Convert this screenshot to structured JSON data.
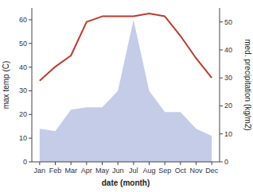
{
  "chart_data": {
    "type": "area",
    "categories": [
      "Jan",
      "Feb",
      "Mar",
      "Apr",
      "May",
      "Jun",
      "Jul",
      "Aug",
      "Sep",
      "Oct",
      "Nov",
      "Dec"
    ],
    "series": [
      {
        "type": "area",
        "color": "#c5cce8",
        "values": [
          14,
          13,
          22,
          23,
          23,
          30,
          60,
          30,
          21,
          21,
          14,
          11
        ]
      },
      {
        "type": "line",
        "axis": "y2",
        "color": "#c0392b",
        "values": [
          29,
          34,
          38,
          50,
          52,
          52,
          52,
          53,
          52,
          45,
          37,
          30
        ]
      }
    ],
    "xlabel": "date (month)",
    "ylabel": "max temp (C)",
    "y2label": "med. precipitation (kg/m2)",
    "ylim": [
      0,
      65
    ],
    "yticks": [
      0,
      10,
      20,
      30,
      40,
      50,
      60
    ],
    "y2lim": [
      0,
      55
    ],
    "y2ticks": [
      0,
      10,
      20,
      30,
      40,
      50
    ],
    "grid": false
  }
}
